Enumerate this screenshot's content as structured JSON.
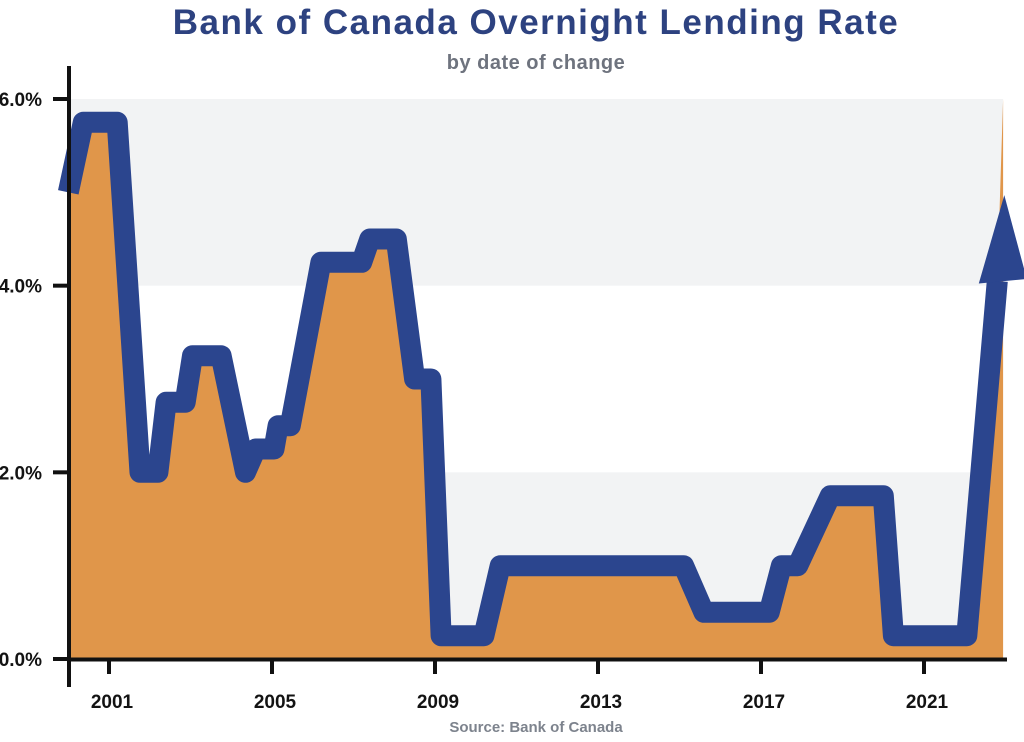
{
  "chart_data": {
    "type": "area",
    "title": "Bank of Canada Overnight Lending Rate",
    "subtitle": "by date of change",
    "source": "Source: Bank of Canada",
    "unit": "percent",
    "x_axis": {
      "ticks": [
        {
          "value": 2001,
          "label": "2001"
        },
        {
          "value": 2005,
          "label": "2005"
        },
        {
          "value": 2009,
          "label": "2009"
        },
        {
          "value": 2013,
          "label": "2013"
        },
        {
          "value": 2017,
          "label": "2017"
        },
        {
          "value": 2021,
          "label": "2021"
        }
      ],
      "range": [
        2000.0,
        2022.94
      ]
    },
    "y_axis": {
      "ticks": [
        {
          "value": 0,
          "label": "0.0%"
        },
        {
          "value": 2,
          "label": "2.0%"
        },
        {
          "value": 4,
          "label": "4.0%"
        },
        {
          "value": 6,
          "label": "6.0%"
        }
      ],
      "range": [
        0,
        6
      ]
    },
    "grid_bands": [
      {
        "from": 0,
        "to": 2
      },
      {
        "from": 4,
        "to": 6
      }
    ],
    "series": [
      {
        "name": "overnight-rate-pct",
        "points": [
          [
            2000.0,
            5.0
          ],
          [
            2000.37,
            5.75
          ],
          [
            2001.2,
            5.75
          ],
          [
            2001.76,
            2.0
          ],
          [
            2002.2,
            2.0
          ],
          [
            2002.4,
            2.75
          ],
          [
            2002.87,
            2.75
          ],
          [
            2003.05,
            3.25
          ],
          [
            2003.75,
            3.25
          ],
          [
            2004.35,
            2.0
          ],
          [
            2004.6,
            2.25
          ],
          [
            2005.05,
            2.25
          ],
          [
            2005.15,
            2.5
          ],
          [
            2005.45,
            2.5
          ],
          [
            2006.2,
            4.25
          ],
          [
            2007.2,
            4.25
          ],
          [
            2007.4,
            4.5
          ],
          [
            2008.05,
            4.5
          ],
          [
            2008.5,
            3.0
          ],
          [
            2008.9,
            3.0
          ],
          [
            2009.15,
            0.25
          ],
          [
            2010.2,
            0.25
          ],
          [
            2010.6,
            1.0
          ],
          [
            2015.1,
            1.0
          ],
          [
            2015.6,
            0.5
          ],
          [
            2017.2,
            0.5
          ],
          [
            2017.5,
            1.0
          ],
          [
            2017.9,
            1.0
          ],
          [
            2018.7,
            1.75
          ],
          [
            2020.0,
            1.75
          ],
          [
            2020.25,
            0.25
          ],
          [
            2022.05,
            0.25
          ],
          [
            2022.8,
            4.05
          ]
        ]
      }
    ],
    "area_end_point": [
      2022.94,
      6.0
    ],
    "annotations": {
      "up_arrow": {
        "tip": [
          2022.97,
          4.97
        ],
        "base_rate": 4.05,
        "meaning": "rate rising off-chart"
      }
    },
    "legend": null,
    "colors": {
      "area": "#e0964a",
      "line": "#2b458e",
      "band": "#f2f3f4",
      "axis": "#111111",
      "tick_label": "#131313",
      "title": "#2d4280",
      "subtitle": "#6e737e",
      "source": "#7d838d"
    }
  }
}
